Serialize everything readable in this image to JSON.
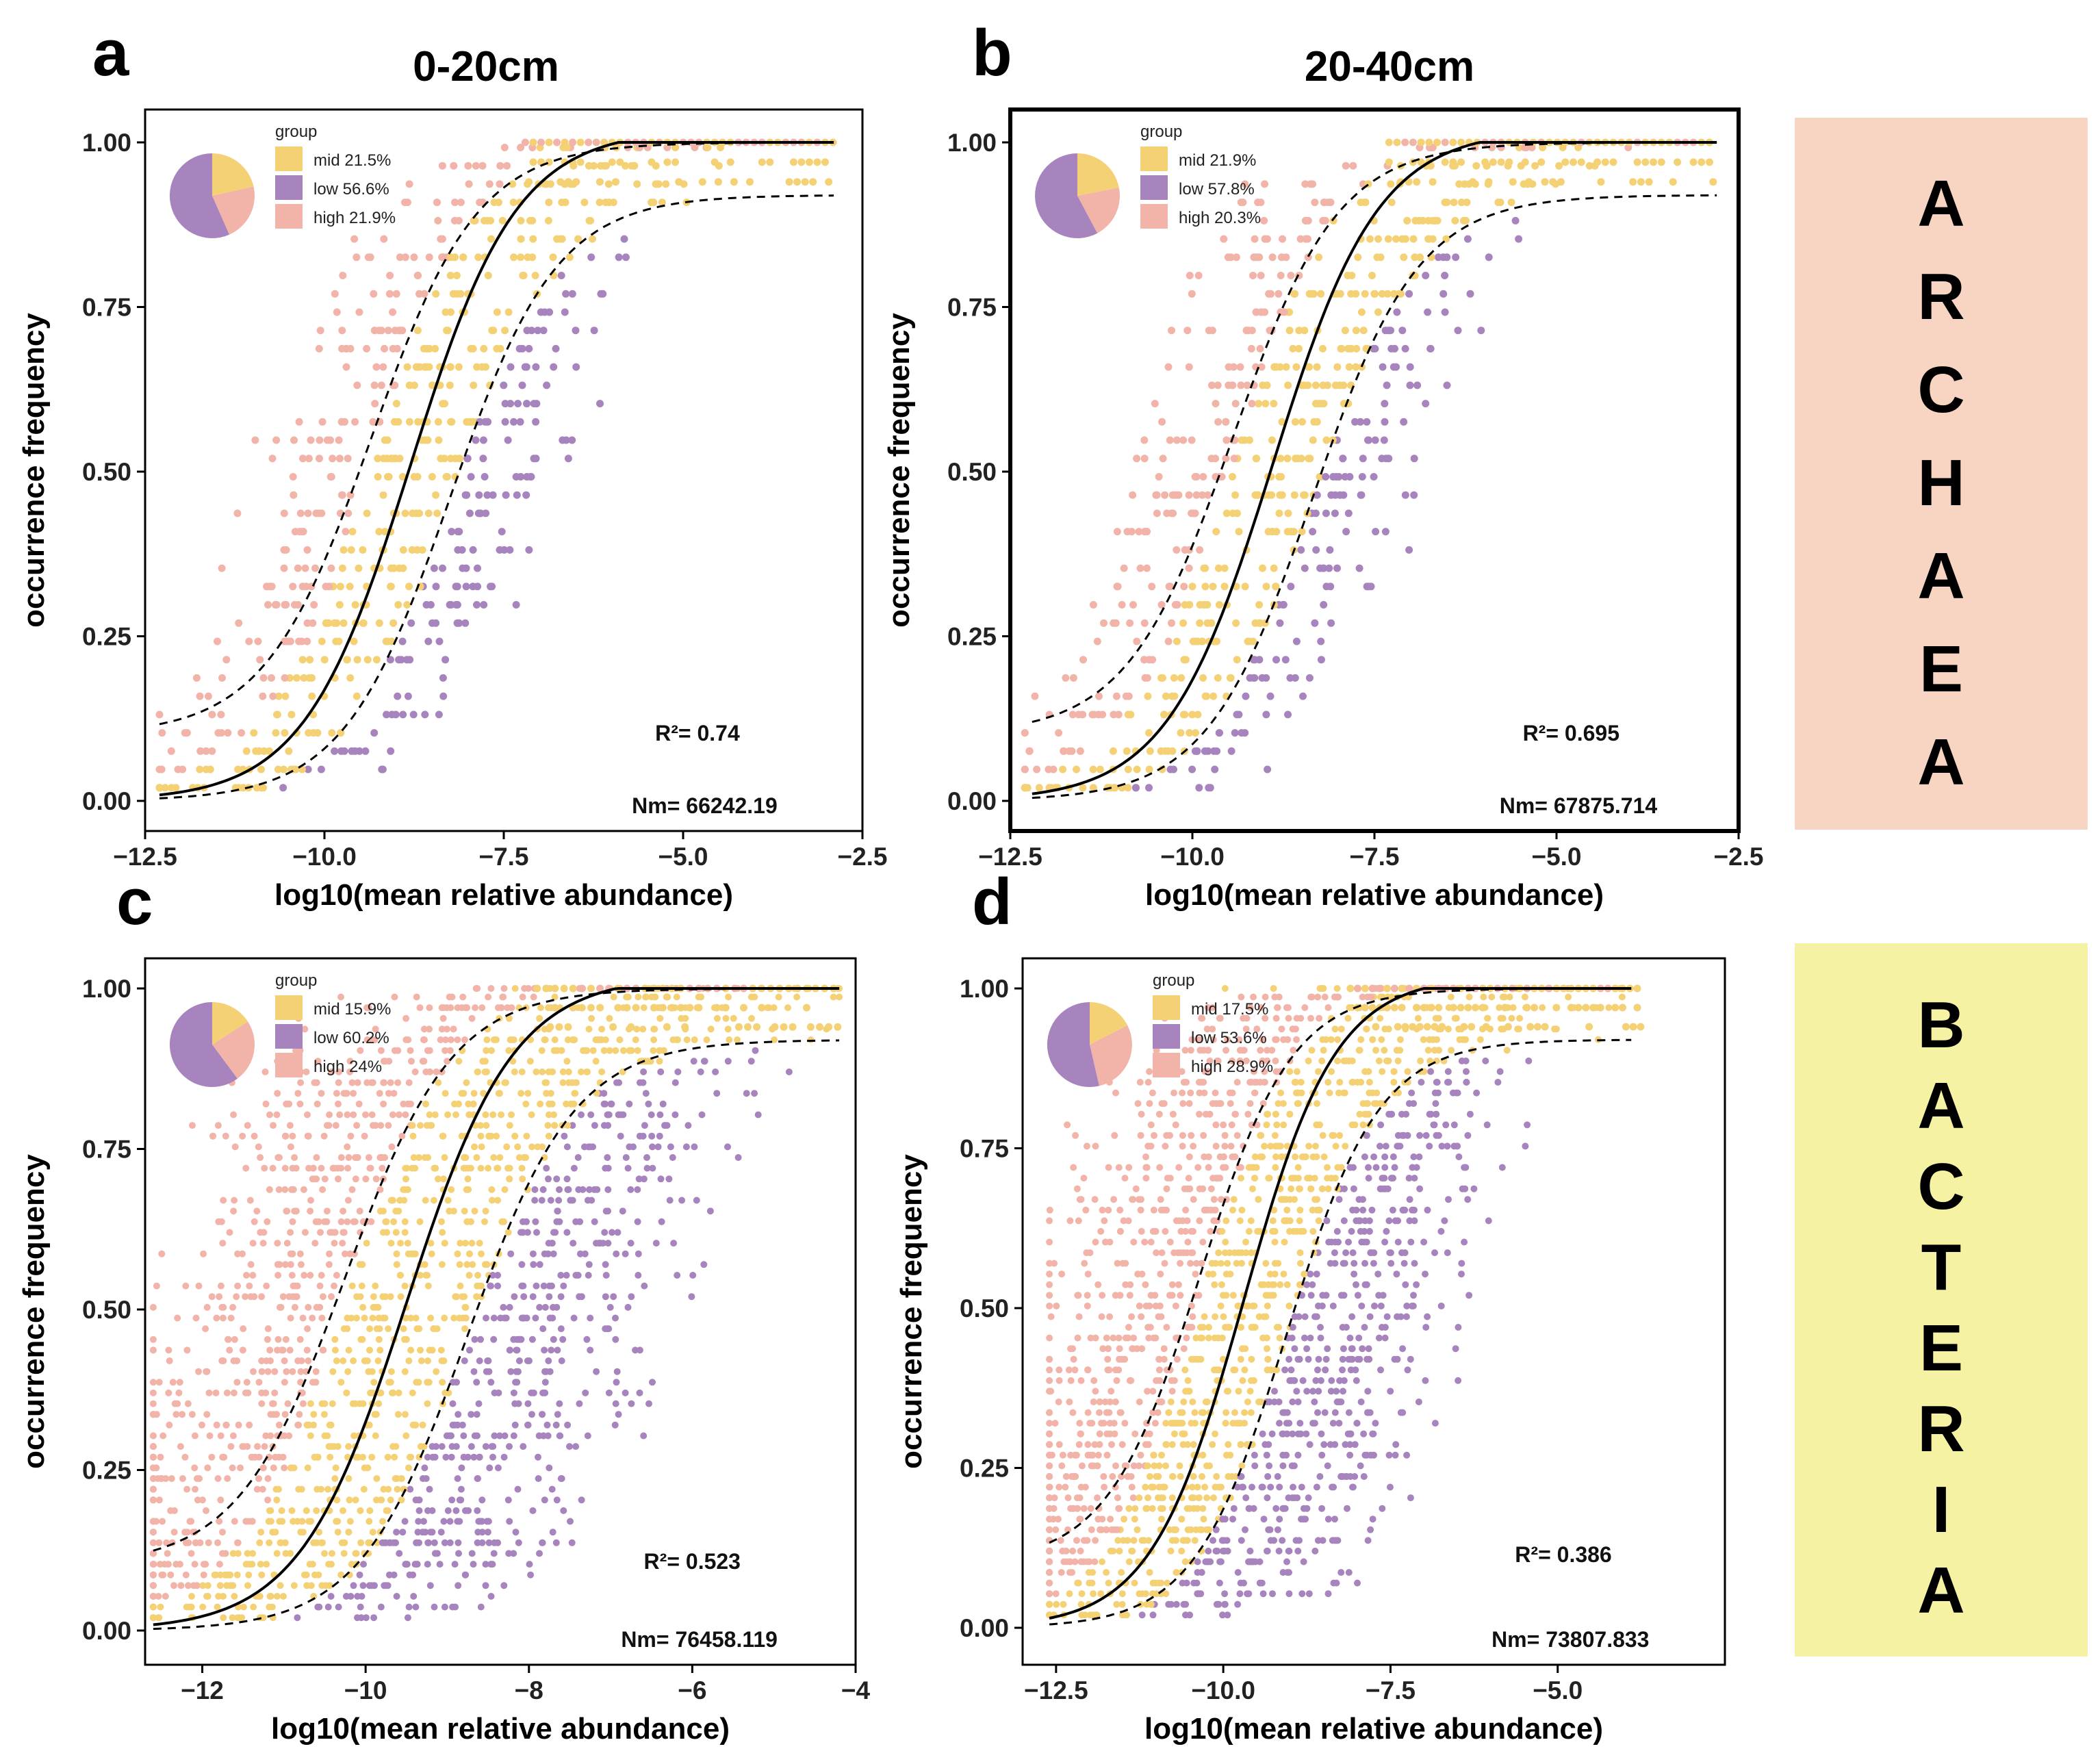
{
  "colors": {
    "mid": "#f5d176",
    "low": "#a784bd",
    "high": "#f2b3a8",
    "archaea_bg": "#f8d5c2",
    "bacteria_bg": "#f6f2a4"
  },
  "depth_headers": {
    "left": "0-20cm",
    "right": "20-40cm"
  },
  "side_labels": {
    "archaea": "ARCHAEA",
    "bacteria": "BACTERIA"
  },
  "chart_data": [
    {
      "panel": "a",
      "type": "scatter",
      "title": "0-20cm",
      "kingdom": "ARCHAEA",
      "xlabel": "log10(mean relative abundance)",
      "ylabel": "occurrence frequency",
      "xlim": [
        -12.5,
        -2.5
      ],
      "ylim": [
        0,
        1
      ],
      "xticks": [
        -12.5,
        -10.0,
        -7.5,
        -5.0,
        -2.5
      ],
      "xtick_labels": [
        "−12.5",
        "−10.0",
        "−7.5",
        "−5.0",
        "−2.5"
      ],
      "yticks": [
        0,
        0.25,
        0.5,
        0.75,
        1.0
      ],
      "ytick_labels": [
        "0.00",
        "0.25",
        "0.50",
        "0.75",
        "1.00"
      ],
      "legend_title": "group",
      "legend": [
        {
          "group": "mid",
          "label": "mid 21.5%",
          "percent": 21.5
        },
        {
          "group": "low",
          "label": "low 56.6%",
          "percent": 56.6
        },
        {
          "group": "high",
          "label": "high 21.9%",
          "percent": 21.9
        }
      ],
      "r2": "R²= 0.74",
      "nm": "Nm= 66242.19",
      "fit": {
        "midpoint": -8.8,
        "slope": 0.93,
        "band": 0.55,
        "x_range": [
          -12.3,
          -2.9
        ]
      },
      "points": {
        "x_range": [
          -12.3,
          -2.8
        ],
        "n": 700,
        "seed": 11,
        "cols": [
          [
            -6.0,
            -5.0
          ],
          [
            -4.6,
            -4.2
          ]
        ]
      },
      "curve_sep": true
    },
    {
      "panel": "b",
      "type": "scatter",
      "title": "20-40cm",
      "kingdom": "ARCHAEA",
      "xlabel": "log10(mean relative abundance)",
      "ylabel": "occurrence frequency",
      "xlim": [
        -12.5,
        -2.5
      ],
      "ylim": [
        0,
        1
      ],
      "xticks": [
        -12.5,
        -10.0,
        -7.5,
        -5.0,
        -2.5
      ],
      "xtick_labels": [
        "−12.5",
        "−10.0",
        "−7.5",
        "−5.0",
        "−2.5"
      ],
      "yticks": [
        0,
        0.25,
        0.5,
        0.75,
        1.0
      ],
      "ytick_labels": [
        "0.00",
        "0.25",
        "0.50",
        "0.75",
        "1.00"
      ],
      "legend_title": "group",
      "legend": [
        {
          "group": "mid",
          "label": "mid 21.9%",
          "percent": 21.9
        },
        {
          "group": "low",
          "label": "low 57.8%",
          "percent": 57.8
        },
        {
          "group": "high",
          "label": "high 20.3%",
          "percent": 20.3
        }
      ],
      "r2": "R²= 0.695",
      "nm": "Nm= 67875.714",
      "fit": {
        "midpoint": -8.9,
        "slope": 0.95,
        "band": 0.55,
        "x_range": [
          -12.2,
          -2.8
        ]
      },
      "points": {
        "x_range": [
          -12.3,
          -2.8
        ],
        "n": 720,
        "seed": 23,
        "cols": [
          [
            -6.6,
            -5.2
          ],
          [
            -3.9,
            -3.0
          ]
        ]
      },
      "curve_sep": true
    },
    {
      "panel": "c",
      "type": "scatter",
      "kingdom": "BACTERIA",
      "xlabel": "log10(mean relative abundance)",
      "ylabel": "occurrence frequency",
      "xlim": [
        -12.7,
        -4.0
      ],
      "ylim": [
        0,
        1
      ],
      "xticks": [
        -12,
        -10,
        -8,
        -6,
        -4
      ],
      "xtick_labels": [
        "−12",
        "−10",
        "−8",
        "−6",
        "−4"
      ],
      "yticks": [
        0,
        0.25,
        0.5,
        0.75,
        1.0
      ],
      "ytick_labels": [
        "0.00",
        "0.25",
        "0.50",
        "0.75",
        "1.00"
      ],
      "legend_title": "group",
      "legend": [
        {
          "group": "mid",
          "label": "mid 15.9%",
          "percent": 15.9
        },
        {
          "group": "low",
          "label": "low 60.2%",
          "percent": 60.2
        },
        {
          "group": "high",
          "label": "high 24%",
          "percent": 24.0
        }
      ],
      "r2": "R²= 0.523",
      "nm": "Nm= 76458.119",
      "fit": {
        "midpoint": -9.5,
        "slope": 1.05,
        "band": 0.75,
        "x_range": [
          -12.6,
          -4.2
        ]
      },
      "points": {
        "x_range": [
          -12.6,
          -4.2
        ],
        "n": 2000,
        "seed": 37,
        "cols": [
          [
            -4.6,
            -4.2
          ],
          [
            -5.9,
            -5.3
          ]
        ]
      },
      "curve_sep": false
    },
    {
      "panel": "d",
      "type": "scatter",
      "title": "",
      "kingdom": "BACTERIA",
      "xlabel": "log10(mean relative abundance)",
      "ylabel": "occurrence frequency",
      "xlim": [
        -13.0,
        -2.5
      ],
      "ylim": [
        0,
        1
      ],
      "xticks": [
        -12.5,
        -10.0,
        -7.5,
        -5.0
      ],
      "xtick_labels": [
        "−12.5",
        "−10.0",
        "−7.5",
        "−5.0"
      ],
      "yticks": [
        0,
        0.25,
        0.5,
        0.75,
        1.0
      ],
      "ytick_labels": [
        "0.00",
        "0.25",
        "0.50",
        "0.75",
        "1.00"
      ],
      "legend_title": "group",
      "legend": [
        {
          "group": "mid",
          "label": "mid 17.5%",
          "percent": 17.5
        },
        {
          "group": "low",
          "label": "low 53.6%",
          "percent": 53.6
        },
        {
          "group": "high",
          "label": "high 28.9%",
          "percent": 28.9
        }
      ],
      "r2": "R²= 0.386",
      "nm": "Nm= 73807.833",
      "fit": {
        "midpoint": -9.7,
        "slope": 1.0,
        "band": 0.65,
        "x_range": [
          -12.6,
          -3.9
        ]
      },
      "points": {
        "x_range": [
          -12.6,
          -3.8
        ],
        "n": 2000,
        "seed": 53,
        "cols": [
          [
            -5.4,
            -4.6
          ],
          [
            -6.3,
            -5.6
          ]
        ]
      },
      "curve_sep": false
    }
  ]
}
